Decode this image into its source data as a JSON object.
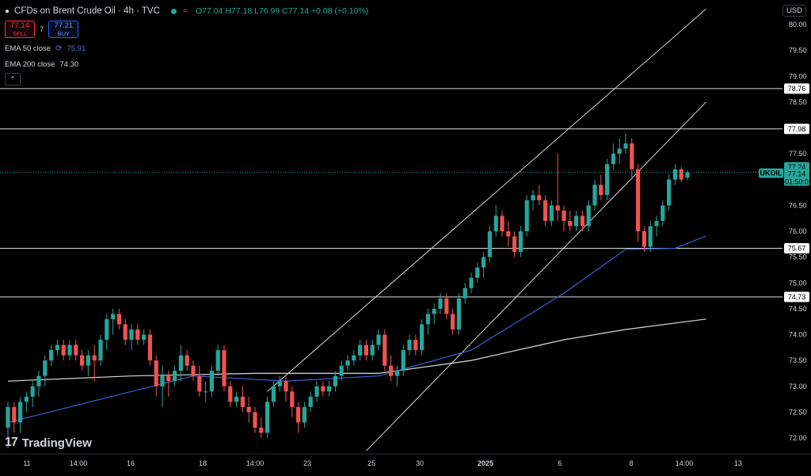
{
  "header": {
    "symbol_title": "CFDs on Brent Crude Oil · 4h · TVC",
    "ohlc": {
      "open": "O77.04",
      "high": "H77.18",
      "low": "L76.99",
      "close": "C77.14",
      "change": "+0.08 (+0.10%)"
    },
    "live_color": "#22ab94"
  },
  "trade": {
    "sell_price": "77.14",
    "sell_label": "SELL",
    "spread": "7",
    "buy_price": "77.21",
    "buy_label": "BUY"
  },
  "indicators": [
    {
      "label": "EMA 50 close",
      "value": "75.91",
      "color": "#3f5fd6"
    },
    {
      "label": "EMA 200 close",
      "value": "74.30",
      "color": "#d9d9d9"
    }
  ],
  "collapse_icon": "chevron-up-icon",
  "price_axis": {
    "currency": "USD",
    "ticks": [
      "80.00",
      "79.50",
      "79.00",
      "78.50",
      "78.00",
      "77.50",
      "77.00",
      "76.50",
      "76.00",
      "75.50",
      "75.00",
      "74.50",
      "74.00",
      "73.50",
      "73.00",
      "72.50",
      "72.00"
    ]
  },
  "time_axis": {
    "labels": [
      "11",
      "14:00",
      "16",
      "18",
      "14:00",
      "23",
      "25",
      "30",
      "2025",
      "6",
      "8",
      "14:00",
      "13"
    ]
  },
  "horizontal_levels": [
    "78.76",
    "77.98",
    "75.67",
    "74.73"
  ],
  "current_price": {
    "ticker": "UKOIL",
    "price": "77.14",
    "countdown": "01:50:0",
    "high_tag": "77.24"
  },
  "colors": {
    "up": "#26a69a",
    "down": "#ef5350",
    "background": "#000000"
  },
  "branding": {
    "logo_text": "TradingView"
  },
  "chart_data": {
    "type": "candlestick",
    "title": "CFDs on Brent Crude Oil",
    "interval": "4h",
    "ylim": [
      71.7,
      80.2
    ],
    "candles": [
      [
        72.2,
        72.7,
        71.8,
        72.6
      ],
      [
        72.6,
        72.7,
        72.1,
        72.3
      ],
      [
        72.3,
        72.8,
        72.1,
        72.7
      ],
      [
        72.7,
        72.9,
        72.5,
        72.8
      ],
      [
        72.8,
        73.1,
        72.6,
        73.0
      ],
      [
        73.0,
        73.3,
        72.8,
        73.2
      ],
      [
        73.2,
        73.6,
        73.0,
        73.5
      ],
      [
        73.5,
        73.8,
        73.4,
        73.7
      ],
      [
        73.7,
        73.9,
        73.6,
        73.8
      ],
      [
        73.8,
        73.9,
        73.5,
        73.6
      ],
      [
        73.6,
        73.9,
        73.5,
        73.8
      ],
      [
        73.8,
        73.9,
        73.5,
        73.6
      ],
      [
        73.6,
        73.7,
        73.3,
        73.4
      ],
      [
        73.4,
        73.7,
        73.2,
        73.6
      ],
      [
        73.6,
        73.8,
        73.1,
        73.5
      ],
      [
        73.5,
        74.0,
        73.4,
        73.9
      ],
      [
        73.9,
        74.4,
        73.7,
        74.3
      ],
      [
        74.3,
        74.5,
        74.0,
        74.4
      ],
      [
        74.4,
        74.5,
        74.1,
        74.2
      ],
      [
        74.2,
        74.3,
        73.8,
        73.9
      ],
      [
        73.9,
        74.2,
        73.7,
        74.1
      ],
      [
        74.1,
        74.2,
        73.8,
        73.9
      ],
      [
        73.9,
        74.1,
        73.8,
        74.0
      ],
      [
        74.0,
        74.1,
        73.4,
        73.5
      ],
      [
        73.5,
        73.6,
        72.8,
        73.0
      ],
      [
        73.0,
        73.4,
        72.6,
        73.2
      ],
      [
        73.2,
        73.3,
        72.8,
        73.1
      ],
      [
        73.1,
        73.4,
        73.0,
        73.3
      ],
      [
        73.3,
        73.8,
        73.1,
        73.6
      ],
      [
        73.6,
        73.7,
        73.3,
        73.4
      ],
      [
        73.4,
        73.5,
        73.1,
        73.2
      ],
      [
        73.2,
        73.4,
        72.8,
        72.9
      ],
      [
        72.9,
        73.1,
        72.7,
        72.9
      ],
      [
        72.9,
        73.4,
        72.8,
        73.3
      ],
      [
        73.3,
        73.8,
        73.2,
        73.7
      ],
      [
        73.7,
        73.8,
        72.9,
        73.0
      ],
      [
        73.0,
        73.1,
        72.6,
        72.7
      ],
      [
        72.7,
        72.9,
        72.6,
        72.8
      ],
      [
        72.8,
        73.0,
        72.5,
        72.6
      ],
      [
        72.6,
        72.8,
        72.3,
        72.5
      ],
      [
        72.5,
        72.6,
        72.1,
        72.2
      ],
      [
        72.2,
        72.4,
        72.0,
        72.1
      ],
      [
        72.1,
        72.8,
        72.0,
        72.7
      ],
      [
        72.7,
        73.1,
        72.6,
        73.0
      ],
      [
        73.0,
        73.2,
        72.9,
        73.1
      ],
      [
        73.1,
        73.2,
        72.7,
        72.9
      ],
      [
        72.9,
        73.0,
        72.4,
        72.6
      ],
      [
        72.6,
        72.7,
        72.1,
        72.3
      ],
      [
        72.3,
        72.7,
        72.2,
        72.6
      ],
      [
        72.6,
        72.9,
        72.5,
        72.8
      ],
      [
        72.8,
        73.1,
        72.7,
        73.0
      ],
      [
        73.0,
        73.1,
        72.8,
        72.9
      ],
      [
        72.9,
        73.1,
        72.8,
        73.0
      ],
      [
        73.0,
        73.3,
        72.9,
        73.2
      ],
      [
        73.2,
        73.5,
        73.1,
        73.4
      ],
      [
        73.4,
        73.6,
        73.3,
        73.5
      ],
      [
        73.5,
        73.7,
        73.4,
        73.6
      ],
      [
        73.6,
        73.9,
        73.5,
        73.8
      ],
      [
        73.8,
        73.9,
        73.5,
        73.6
      ],
      [
        73.6,
        73.9,
        73.5,
        73.8
      ],
      [
        73.8,
        74.1,
        73.7,
        74.0
      ],
      [
        74.0,
        74.1,
        73.3,
        73.4
      ],
      [
        73.4,
        73.6,
        73.1,
        73.2
      ],
      [
        73.2,
        73.4,
        73.0,
        73.3
      ],
      [
        73.3,
        73.8,
        73.2,
        73.7
      ],
      [
        73.7,
        74.0,
        73.6,
        73.9
      ],
      [
        73.9,
        74.0,
        73.6,
        73.7
      ],
      [
        73.7,
        74.3,
        73.6,
        74.2
      ],
      [
        74.2,
        74.5,
        74.0,
        74.4
      ],
      [
        74.4,
        74.6,
        74.2,
        74.5
      ],
      [
        74.5,
        74.8,
        74.4,
        74.7
      ],
      [
        74.7,
        74.8,
        74.3,
        74.4
      ],
      [
        74.4,
        74.5,
        74.0,
        74.1
      ],
      [
        74.1,
        74.8,
        74.0,
        74.7
      ],
      [
        74.7,
        75.0,
        74.6,
        74.9
      ],
      [
        74.9,
        75.2,
        74.8,
        75.1
      ],
      [
        75.1,
        75.4,
        75.0,
        75.3
      ],
      [
        75.3,
        75.6,
        75.1,
        75.5
      ],
      [
        75.5,
        76.1,
        75.4,
        76.0
      ],
      [
        76.0,
        76.5,
        75.9,
        76.3
      ],
      [
        76.3,
        76.4,
        75.9,
        76.0
      ],
      [
        76.0,
        76.2,
        75.7,
        75.9
      ],
      [
        75.9,
        76.0,
        75.5,
        75.6
      ],
      [
        75.6,
        76.1,
        75.5,
        76.0
      ],
      [
        76.0,
        76.7,
        75.9,
        76.6
      ],
      [
        76.6,
        76.8,
        76.4,
        76.7
      ],
      [
        76.7,
        76.9,
        76.5,
        76.6
      ],
      [
        76.6,
        76.7,
        76.1,
        76.2
      ],
      [
        76.2,
        76.6,
        76.1,
        76.5
      ],
      [
        76.5,
        77.5,
        76.2,
        76.4
      ],
      [
        76.4,
        76.5,
        76.0,
        76.2
      ],
      [
        76.2,
        76.4,
        76.0,
        76.1
      ],
      [
        76.1,
        76.4,
        76.0,
        76.3
      ],
      [
        76.3,
        76.4,
        76.0,
        76.1
      ],
      [
        76.1,
        76.6,
        76.0,
        76.5
      ],
      [
        76.5,
        77.0,
        76.4,
        76.9
      ],
      [
        76.9,
        77.1,
        76.6,
        76.7
      ],
      [
        76.7,
        77.4,
        76.6,
        77.3
      ],
      [
        77.3,
        77.7,
        77.2,
        77.5
      ],
      [
        77.5,
        77.8,
        77.3,
        77.6
      ],
      [
        77.6,
        77.9,
        77.5,
        77.7
      ],
      [
        77.7,
        77.8,
        77.0,
        77.2
      ],
      [
        77.2,
        77.3,
        75.8,
        76.0
      ],
      [
        76.0,
        76.1,
        75.6,
        75.7
      ],
      [
        75.7,
        76.2,
        75.6,
        76.1
      ],
      [
        76.1,
        76.3,
        75.9,
        76.2
      ],
      [
        76.2,
        76.6,
        76.1,
        76.5
      ],
      [
        76.5,
        77.1,
        76.4,
        77.0
      ],
      [
        77.0,
        77.3,
        76.9,
        77.2
      ],
      [
        77.2,
        77.25,
        76.95,
        77.0
      ],
      [
        77.04,
        77.18,
        76.99,
        77.14
      ]
    ],
    "ema50": [
      [
        0,
        72.3
      ],
      [
        15,
        72.75
      ],
      [
        30,
        73.2
      ],
      [
        45,
        73.1
      ],
      [
        60,
        73.2
      ],
      [
        75,
        73.7
      ],
      [
        90,
        74.8
      ],
      [
        100,
        75.65
      ],
      [
        108,
        75.67
      ],
      [
        113,
        75.91
      ]
    ],
    "ema200": [
      [
        0,
        73.1
      ],
      [
        20,
        73.2
      ],
      [
        40,
        73.25
      ],
      [
        60,
        73.25
      ],
      [
        75,
        73.5
      ],
      [
        90,
        73.9
      ],
      [
        100,
        74.1
      ],
      [
        113,
        74.3
      ]
    ],
    "levels": [
      78.76,
      77.98,
      75.67,
      74.73
    ],
    "channel": {
      "upper": [
        [
          42,
          72.9
        ],
        [
          113,
          80.3
        ]
      ],
      "lower": [
        [
          58,
          71.75
        ],
        [
          113,
          78.5
        ]
      ]
    }
  }
}
